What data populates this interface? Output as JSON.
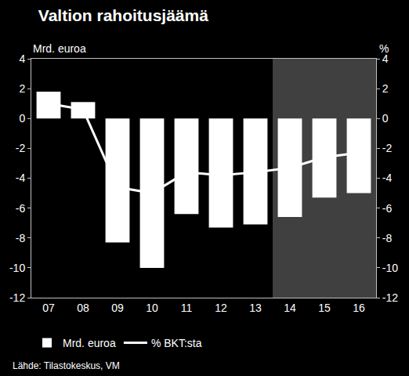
{
  "chart_data": {
    "type": "bar",
    "title": "Valtion rahoitusjäämä",
    "y_label": "Mrd. euroa",
    "y2_label": "%",
    "source": "Lähde: Tilastokeskus, VM",
    "categories": [
      "07",
      "08",
      "09",
      "10",
      "11",
      "12",
      "13",
      "14",
      "15",
      "16"
    ],
    "series": [
      {
        "name": "Mrd. euroa",
        "type": "bar",
        "color": "#ffffff",
        "values": [
          1.8,
          1.1,
          -8.3,
          -10.0,
          -6.4,
          -7.3,
          -7.1,
          -6.6,
          -5.3,
          -5.0
        ]
      },
      {
        "name": "% BKT:sta",
        "type": "line",
        "axis": "y2",
        "color": "#ffffff",
        "values": [
          1.0,
          0.6,
          -4.6,
          -5.0,
          -3.6,
          -3.8,
          -3.6,
          -3.3,
          -2.6,
          -2.3
        ]
      }
    ],
    "ylim": [
      -12,
      4
    ],
    "yticks": [
      -12,
      -10,
      -8,
      -6,
      -4,
      -2,
      0,
      2,
      4
    ],
    "y2lim": [
      -12,
      4
    ],
    "y2ticks": [
      -12,
      -10,
      -8,
      -6,
      -4,
      -2,
      0,
      2,
      4
    ],
    "grid": false,
    "legend": "bottom"
  }
}
